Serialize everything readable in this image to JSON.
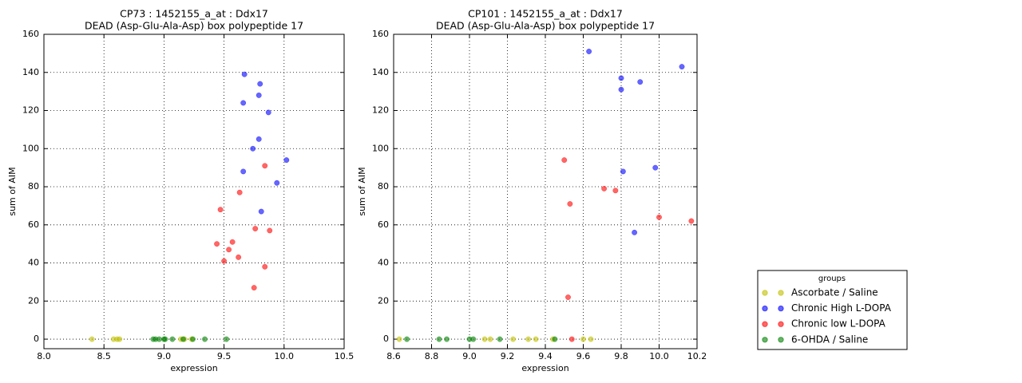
{
  "chart_data": [
    {
      "type": "scatter",
      "title": "CP73 : 1452155_a_at : Ddx17",
      "subtitle": "DEAD (Asp-Glu-Ala-Asp) box polypeptide 17",
      "x_label": "expression",
      "y_label": "sum of AIM",
      "xlim": [
        8.0,
        10.5
      ],
      "ylim": [
        -5,
        160
      ],
      "xticks": [
        {
          "value": 8,
          "label": "8.0"
        },
        8.5,
        {
          "value": 9,
          "label": "9.0"
        },
        9.5,
        {
          "value": 10,
          "label": "10.0"
        },
        10.5
      ],
      "yticks": [
        0,
        20,
        40,
        60,
        80,
        100,
        120,
        140,
        160
      ],
      "grid": true,
      "alpha": 0.6,
      "series": [
        {
          "name": "Ascorbate / Saline",
          "color": "#bfbf00",
          "x": [
            8.4,
            8.58,
            8.61,
            8.63,
            9.14,
            9.17,
            9.23
          ],
          "values": [
            0,
            0,
            0,
            0,
            0,
            0,
            0
          ]
        },
        {
          "name": "Chronic High L-DOPA",
          "color": "#0000ff",
          "x": [
            9.67,
            9.8,
            9.66,
            9.79,
            9.87,
            9.79,
            9.74,
            10.02,
            9.66,
            9.94,
            9.81
          ],
          "values": [
            139,
            134,
            124,
            128,
            119,
            105,
            100,
            94,
            88,
            82,
            67
          ]
        },
        {
          "name": "Chronic low L-DOPA",
          "color": "#ff0000",
          "x": [
            9.84,
            9.63,
            9.47,
            9.44,
            9.57,
            9.54,
            9.62,
            9.5,
            9.76,
            9.88,
            9.84,
            9.75
          ],
          "values": [
            91,
            77,
            68,
            50,
            51,
            47,
            43,
            41,
            58,
            57,
            38,
            27
          ]
        },
        {
          "name": "6-OHDA / Saline",
          "color": "#008000",
          "x": [
            8.91,
            8.93,
            8.96,
            9.0,
            9.01,
            9.07,
            9.16,
            9.24,
            9.34,
            9.52
          ],
          "values": [
            0,
            0,
            0,
            0,
            0,
            0,
            0,
            0,
            0,
            0
          ]
        }
      ]
    },
    {
      "type": "scatter",
      "title": "CP101 : 1452155_a_at : Ddx17",
      "subtitle": "DEAD (Asp-Glu-Ala-Asp) box polypeptide 17",
      "x_label": "expression",
      "y_label": "sum of AIM",
      "xlim": [
        8.6,
        10.2
      ],
      "ylim": [
        -5,
        160
      ],
      "xticks": [
        8.6,
        8.8,
        {
          "value": 9,
          "label": "9.0"
        },
        9.2,
        9.4,
        9.6,
        9.8,
        {
          "value": 10,
          "label": "10.0"
        },
        10.2
      ],
      "yticks": [
        0,
        20,
        40,
        60,
        80,
        100,
        120,
        140,
        160
      ],
      "grid": true,
      "alpha": 0.6,
      "series": [
        {
          "name": "Ascorbate / Saline",
          "color": "#bfbf00",
          "x": [
            8.63,
            9.08,
            9.11,
            9.23,
            9.31,
            9.35,
            9.44,
            9.6,
            9.64
          ],
          "values": [
            0,
            0,
            0,
            0,
            0,
            0,
            0,
            0,
            0
          ]
        },
        {
          "name": "Chronic High L-DOPA",
          "color": "#0000ff",
          "x": [
            9.63,
            10.12,
            9.8,
            9.9,
            9.8,
            9.81,
            9.98,
            9.87
          ],
          "values": [
            151,
            143,
            137,
            135,
            131,
            88,
            90,
            56
          ]
        },
        {
          "name": "Chronic low L-DOPA",
          "color": "#ff0000",
          "x": [
            9.5,
            9.71,
            9.77,
            9.53,
            10.0,
            10.17,
            9.52,
            9.54
          ],
          "values": [
            94,
            79,
            78,
            71,
            64,
            62,
            22,
            0
          ]
        },
        {
          "name": "6-OHDA / Saline",
          "color": "#008000",
          "x": [
            8.67,
            8.84,
            8.88,
            9.0,
            9.02,
            9.16,
            9.45
          ],
          "values": [
            0,
            0,
            0,
            0,
            0,
            0,
            0
          ]
        }
      ]
    }
  ],
  "legend": {
    "title": "groups"
  }
}
